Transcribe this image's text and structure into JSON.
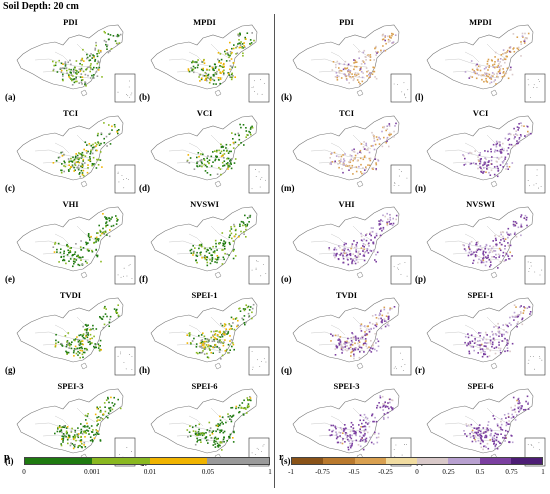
{
  "header": "Soil Depth: 20 cm",
  "panels": [
    {
      "label": "(a)",
      "title": "PDI",
      "side": "p",
      "blobs": [
        [
          "#1f7a10",
          0.55
        ],
        [
          "#8ab820",
          0.35
        ],
        [
          "#9a9a9a",
          0.45
        ],
        [
          "#f0b400",
          0.08
        ]
      ]
    },
    {
      "label": "(b)",
      "title": "MPDI",
      "side": "p",
      "blobs": [
        [
          "#1f7a10",
          0.6
        ],
        [
          "#8ab820",
          0.3
        ],
        [
          "#9a9a9a",
          0.25
        ],
        [
          "#f0b400",
          0.35
        ]
      ]
    },
    {
      "label": "(c)",
      "title": "TCI",
      "side": "p",
      "blobs": [
        [
          "#1f7a10",
          0.6
        ],
        [
          "#8ab820",
          0.3
        ],
        [
          "#9a9a9a",
          0.2
        ],
        [
          "#f0b400",
          0.2
        ]
      ]
    },
    {
      "label": "(d)",
      "title": "VCI",
      "side": "p",
      "blobs": [
        [
          "#1f7a10",
          0.7
        ],
        [
          "#8ab820",
          0.25
        ],
        [
          "#9a9a9a",
          0.1
        ],
        [
          "#f0b400",
          0.05
        ]
      ]
    },
    {
      "label": "(e)",
      "title": "VHI",
      "side": "p",
      "blobs": [
        [
          "#1f7a10",
          0.85
        ],
        [
          "#8ab820",
          0.2
        ],
        [
          "#9a9a9a",
          0.05
        ],
        [
          "#f0b400",
          0.05
        ]
      ]
    },
    {
      "label": "(f)",
      "title": "NVSWI",
      "side": "p",
      "blobs": [
        [
          "#1f7a10",
          0.7
        ],
        [
          "#8ab820",
          0.3
        ],
        [
          "#9a9a9a",
          0.05
        ],
        [
          "#f0b400",
          0.05
        ]
      ]
    },
    {
      "label": "(g)",
      "title": "TVDI",
      "side": "p",
      "blobs": [
        [
          "#1f7a10",
          0.8
        ],
        [
          "#8ab820",
          0.25
        ],
        [
          "#9a9a9a",
          0.1
        ],
        [
          "#f0b400",
          0.1
        ]
      ]
    },
    {
      "label": "(h)",
      "title": "SPEI-1",
      "side": "p",
      "blobs": [
        [
          "#1f7a10",
          0.5
        ],
        [
          "#8ab820",
          0.4
        ],
        [
          "#9a9a9a",
          0.4
        ],
        [
          "#f0b400",
          0.3
        ]
      ]
    },
    {
      "label": "(i)",
      "title": "SPEI-3",
      "side": "p",
      "blobs": [
        [
          "#1f7a10",
          0.9
        ],
        [
          "#8ab820",
          0.3
        ],
        [
          "#9a9a9a",
          0.1
        ],
        [
          "#f0b400",
          0.15
        ]
      ]
    },
    {
      "label": "(j)",
      "title": "SPEI-6",
      "side": "p",
      "blobs": [
        [
          "#1f7a10",
          0.9
        ],
        [
          "#8ab820",
          0.25
        ],
        [
          "#9a9a9a",
          0.1
        ],
        [
          "#f0b400",
          0.05
        ]
      ]
    },
    {
      "label": "(k)",
      "title": "PDI",
      "side": "r",
      "blobs": [
        [
          "#d9a050",
          0.6
        ],
        [
          "#d9c9c9",
          0.4
        ],
        [
          "#b8a0d0",
          0.2
        ],
        [
          "#7b3fa0",
          0.05
        ]
      ]
    },
    {
      "label": "(l)",
      "title": "MPDI",
      "side": "r",
      "blobs": [
        [
          "#d9a050",
          0.65
        ],
        [
          "#d9c9c9",
          0.35
        ],
        [
          "#b8a0d0",
          0.15
        ],
        [
          "#7b3fa0",
          0.05
        ]
      ]
    },
    {
      "label": "(m)",
      "title": "TCI",
      "side": "r",
      "blobs": [
        [
          "#d9a050",
          0.5
        ],
        [
          "#d9c9c9",
          0.4
        ],
        [
          "#b8a0d0",
          0.25
        ],
        [
          "#7b3fa0",
          0.1
        ]
      ]
    },
    {
      "label": "(n)",
      "title": "VCI",
      "side": "r",
      "blobs": [
        [
          "#d9a050",
          0.05
        ],
        [
          "#d9c9c9",
          0.3
        ],
        [
          "#b8a0d0",
          0.4
        ],
        [
          "#7b3fa0",
          0.6
        ]
      ]
    },
    {
      "label": "(o)",
      "title": "VHI",
      "side": "r",
      "blobs": [
        [
          "#d9a050",
          0.05
        ],
        [
          "#d9c9c9",
          0.3
        ],
        [
          "#b8a0d0",
          0.45
        ],
        [
          "#7b3fa0",
          0.65
        ]
      ]
    },
    {
      "label": "(p)",
      "title": "NVSWI",
      "side": "r",
      "blobs": [
        [
          "#d9a050",
          0.05
        ],
        [
          "#d9c9c9",
          0.3
        ],
        [
          "#b8a0d0",
          0.4
        ],
        [
          "#7b3fa0",
          0.65
        ]
      ]
    },
    {
      "label": "(q)",
      "title": "TVDI",
      "side": "r",
      "blobs": [
        [
          "#d9a050",
          0.3
        ],
        [
          "#d9c9c9",
          0.35
        ],
        [
          "#b8a0d0",
          0.35
        ],
        [
          "#7b3fa0",
          0.55
        ]
      ]
    },
    {
      "label": "(r)",
      "title": "SPEI-1",
      "side": "r",
      "blobs": [
        [
          "#d9a050",
          0.05
        ],
        [
          "#d9c9c9",
          0.35
        ],
        [
          "#b8a0d0",
          0.4
        ],
        [
          "#7b3fa0",
          0.55
        ]
      ]
    },
    {
      "label": "(s)",
      "title": "SPEI-3",
      "side": "r",
      "blobs": [
        [
          "#d9a050",
          0.05
        ],
        [
          "#d9c9c9",
          0.2
        ],
        [
          "#b8a0d0",
          0.45
        ],
        [
          "#7b3fa0",
          0.8
        ]
      ]
    },
    {
      "label": "(t)",
      "title": "SPEI-6",
      "side": "r",
      "blobs": [
        [
          "#d9a050",
          0.05
        ],
        [
          "#d9c9c9",
          0.2
        ],
        [
          "#b8a0d0",
          0.45
        ],
        [
          "#7b3fa0",
          0.85
        ]
      ]
    }
  ],
  "legend_p": {
    "symbol": "p",
    "colors": [
      "#1f7a10",
      "#8ab820",
      "#f0b400",
      "#9a9a9a"
    ],
    "ticks": [
      "0",
      "0.001",
      "0.01",
      "0.05",
      "1"
    ]
  },
  "legend_r": {
    "symbol": "r",
    "colors": [
      "#8a5318",
      "#b9792d",
      "#d9a050",
      "#f1dca0",
      "#d9c9c9",
      "#b8a0d0",
      "#7b3fa0",
      "#4d1d75"
    ],
    "ticks": [
      "-1",
      "-0.75",
      "-0.5",
      "-0.25",
      "0",
      "0.25",
      "0.5",
      "0.75",
      "1"
    ]
  }
}
